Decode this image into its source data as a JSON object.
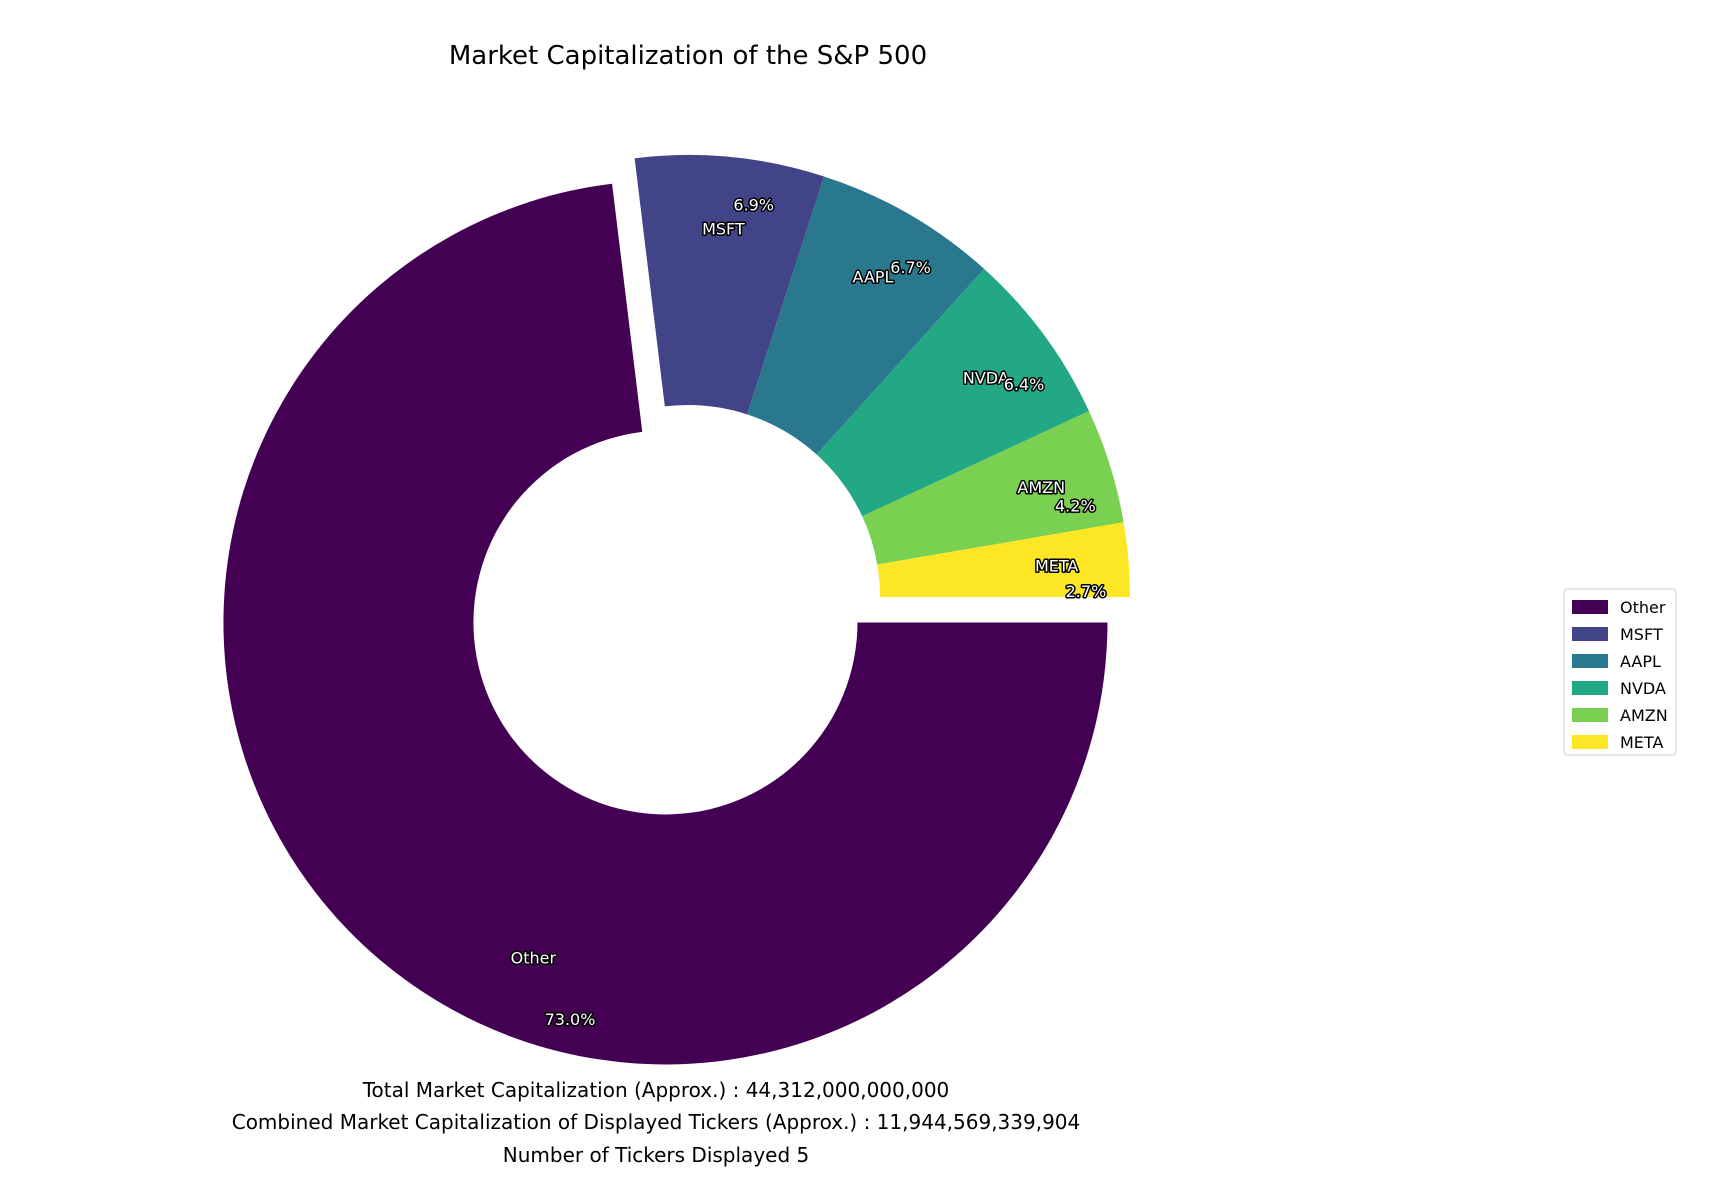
{
  "chart_data": {
    "type": "pie",
    "title": "Market Capitalization of the S&P 500",
    "categories": [
      "Other",
      "MSFT",
      "AAPL",
      "NVDA",
      "AMZN",
      "META"
    ],
    "values": [
      73.0,
      6.9,
      6.7,
      6.4,
      4.2,
      2.7
    ],
    "value_labels": [
      "73.0%",
      "6.9%",
      "6.7%",
      "6.4%",
      "4.2%",
      "2.7%"
    ],
    "colors": [
      "#440154",
      "#414487",
      "#2a788e",
      "#22a884",
      "#7ad151",
      "#fde725"
    ],
    "donut": true,
    "exploded": [
      "Other"
    ],
    "legend": {
      "position": "right",
      "entries": [
        "Other",
        "MSFT",
        "AAPL",
        "NVDA",
        "AMZN",
        "META"
      ]
    }
  },
  "footer": {
    "total": "Total Market Capitalization (Approx.) : 44,312,000,000,000",
    "combined": "Combined Market Capitalization of Displayed Tickers (Approx.) : 11,944,569,339,904",
    "count": "Number of Tickers Displayed 5"
  }
}
